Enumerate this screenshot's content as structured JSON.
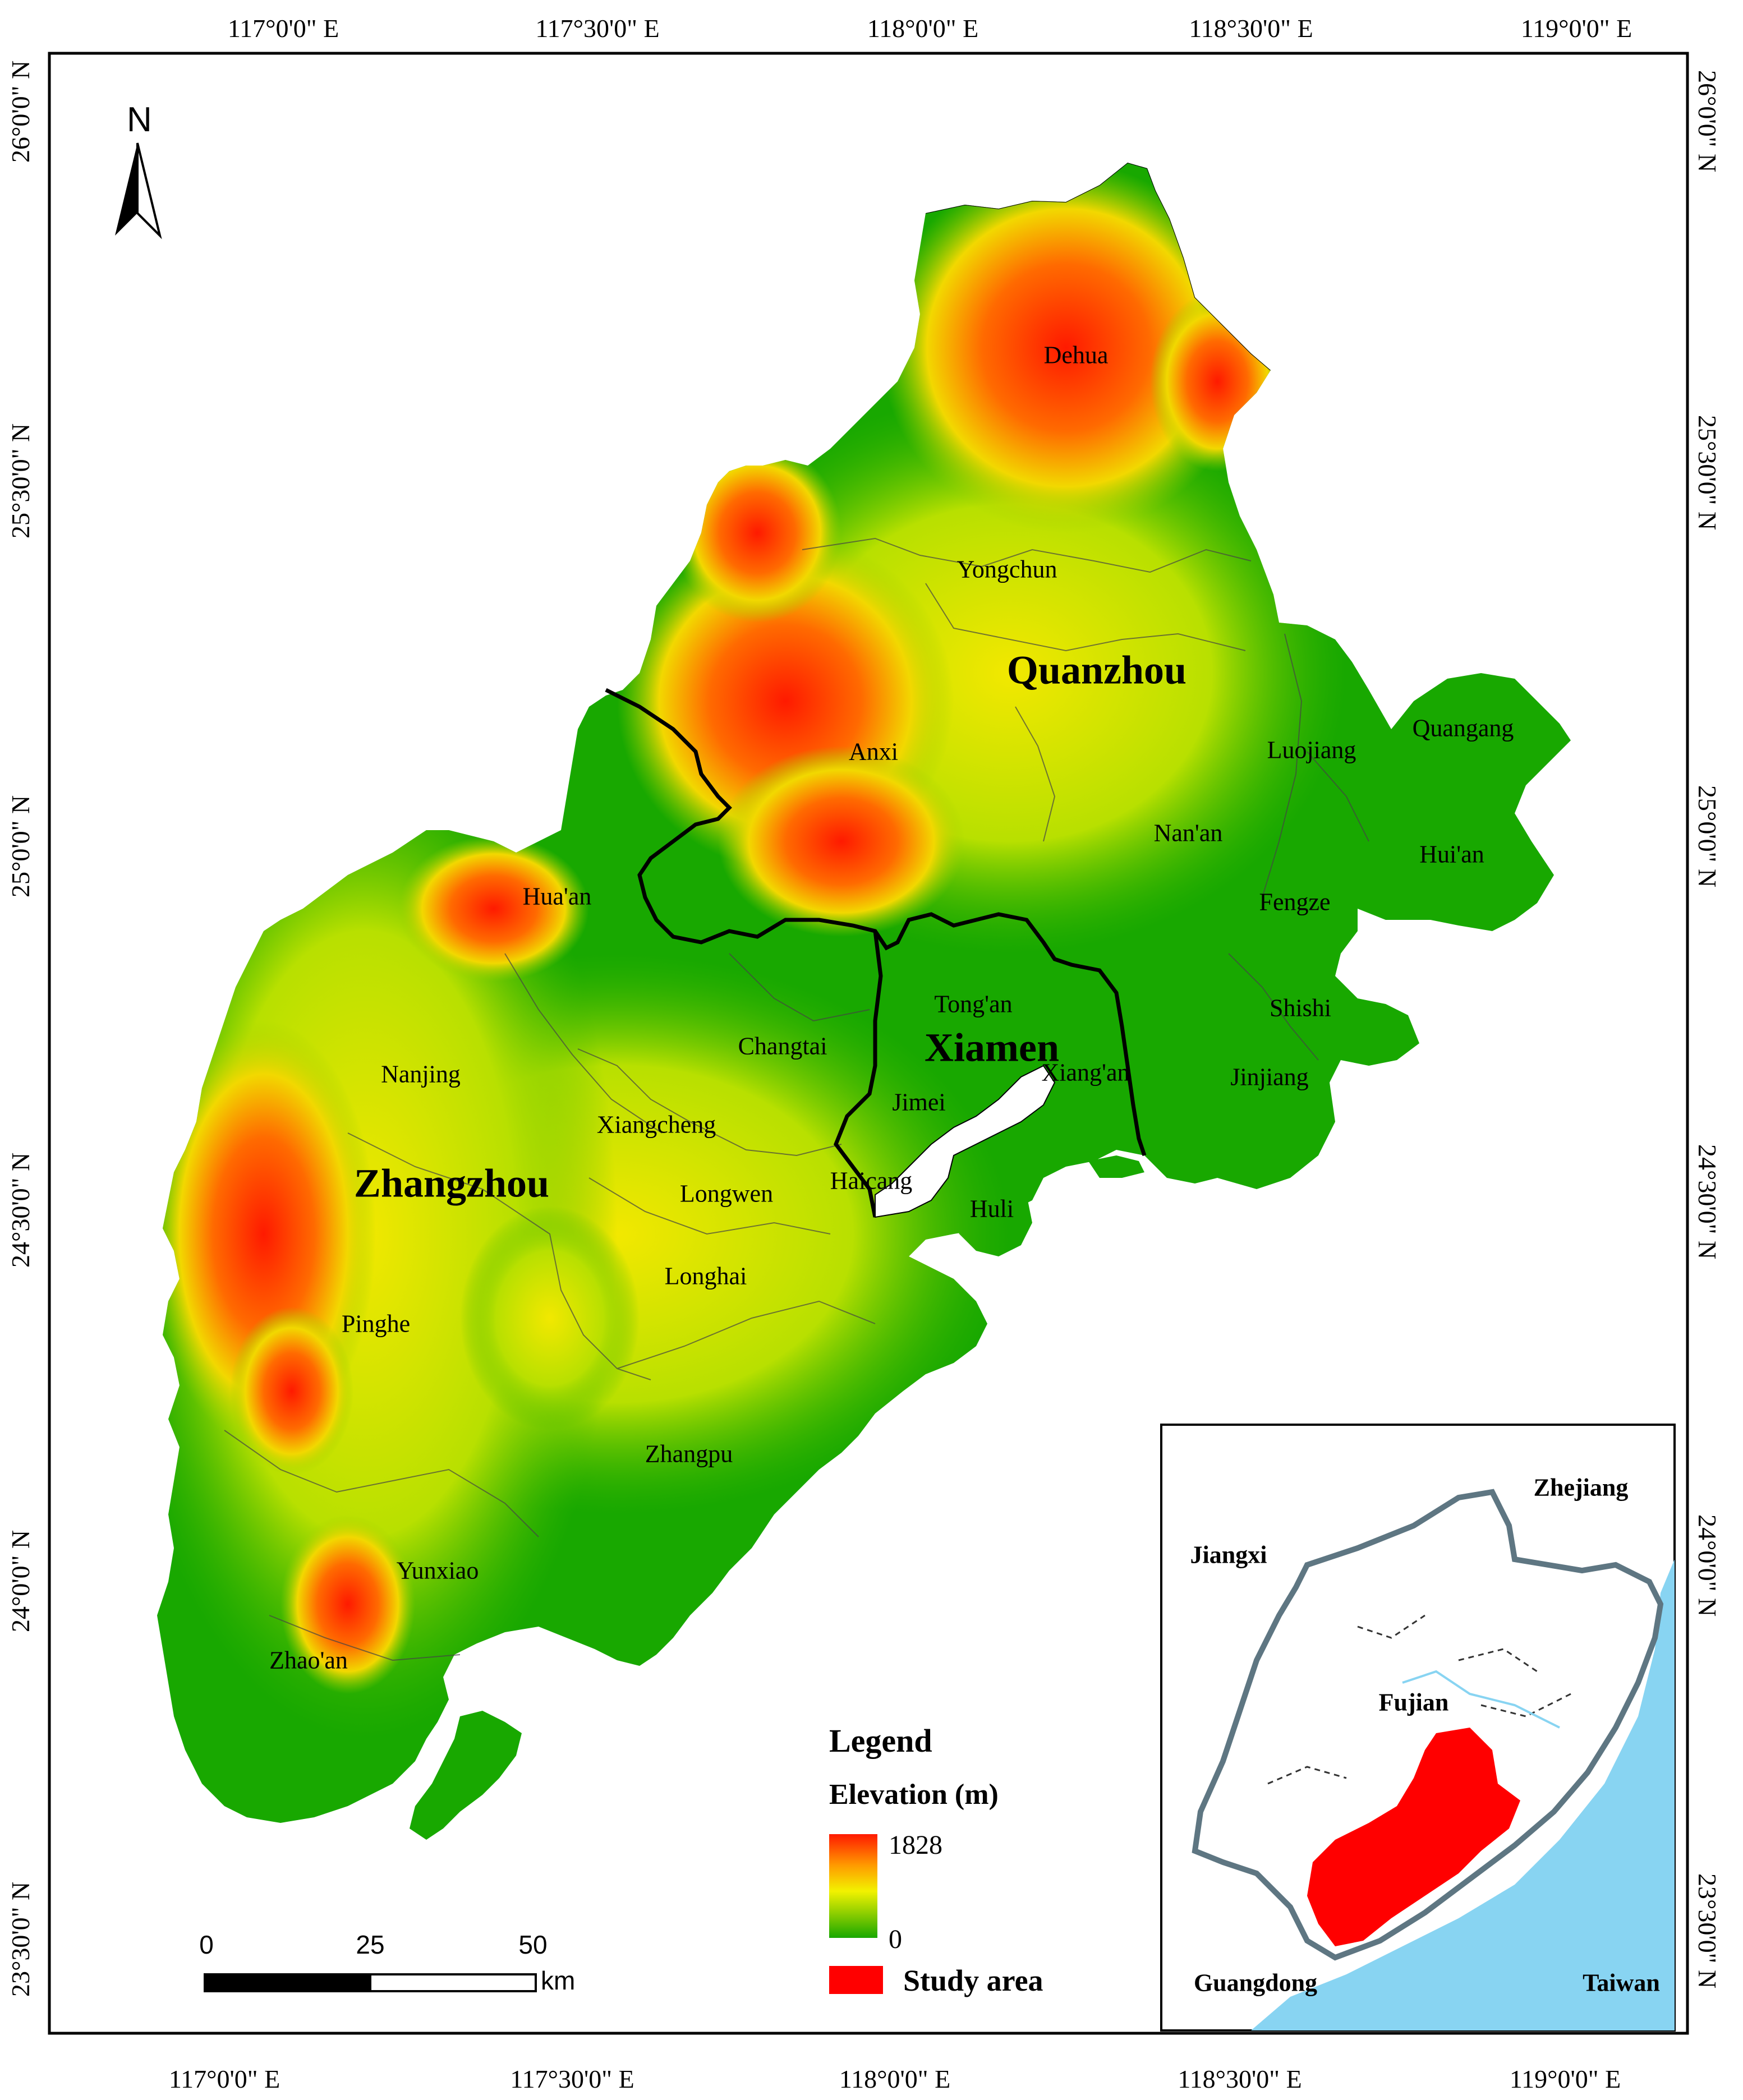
{
  "map": {
    "longitude_ticks": [
      "117°0'0\" E",
      "117°30'0\" E",
      "118°0'0\" E",
      "118°30'0\" E",
      "119°0'0\" E"
    ],
    "latitude_ticks": [
      "26°0'0\" N",
      "25°30'0\" N",
      "25°0'0\" N",
      "24°30'0\" N",
      "24°0'0\" N",
      "23°30'0\" N"
    ],
    "north_arrow_label": "N",
    "cities": [
      "Quanzhou",
      "Xiamen",
      "Zhangzhou"
    ],
    "districts": [
      "Dehua",
      "Yongchun",
      "Anxi",
      "Luojiang",
      "Quangang",
      "Nan'an",
      "Hui'an",
      "Fengze",
      "Shishi",
      "Jinjiang",
      "Hua'an",
      "Changtai",
      "Tong'an",
      "Jimei",
      "Xiang'an",
      "Nanjing",
      "Xiangcheng",
      "Longwen",
      "Haicang",
      "Huli",
      "Longhai",
      "Pinghe",
      "Zhangpu",
      "Yunxiao",
      "Zhao'an"
    ],
    "colors": {
      "low": "#18a800",
      "mid_low": "#8ccf00",
      "mid": "#f2f200",
      "mid_high": "#ff9a00",
      "high": "#ff1a00",
      "sea": "#88d4f2",
      "study_area": "#ff0000",
      "boundary": "#000000",
      "province_outline": "#5e7682"
    }
  },
  "legend": {
    "title": "Legend",
    "elevation_label": "Elevation (m)",
    "max_value": "1828",
    "min_value": "0",
    "study_area_label": "Study area"
  },
  "scale_bar": {
    "ticks": [
      "0",
      "25",
      "50"
    ],
    "unit": "km"
  },
  "inset": {
    "labels": [
      "Zhejiang",
      "Jiangxi",
      "Fujian",
      "Guangdong",
      "Taiwan"
    ]
  }
}
